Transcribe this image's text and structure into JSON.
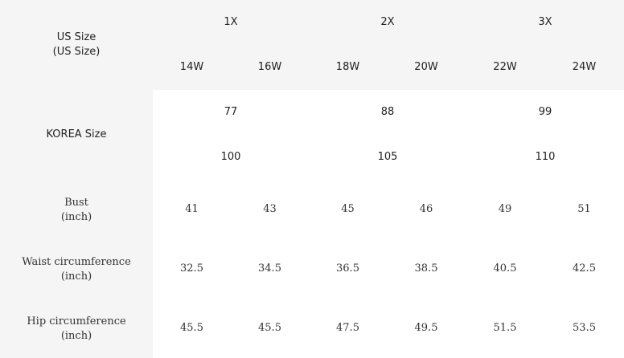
{
  "us_size": {
    "label_line1": "US Size",
    "label_line2": "(US Size)",
    "groups": [
      "1X",
      "2X",
      "3X"
    ],
    "sizes": [
      "14W",
      "16W",
      "18W",
      "20W",
      "22W",
      "24W"
    ]
  },
  "korea_size": {
    "label": "KOREA Size",
    "row1": [
      "77",
      "88",
      "99"
    ],
    "row2": [
      "100",
      "105",
      "110"
    ]
  },
  "bust": {
    "label_line1": "Bust",
    "label_line2": "(inch)",
    "values": [
      "41",
      "43",
      "45",
      "46",
      "49",
      "51"
    ]
  },
  "waist": {
    "label_line1": "Waist circumference",
    "label_line2": "(inch)",
    "values": [
      "32.5",
      "34.5",
      "36.5",
      "38.5",
      "40.5",
      "42.5"
    ]
  },
  "hip": {
    "label_line1": "Hip circumference",
    "label_line2": "(inch)",
    "values": [
      "45.5",
      "45.5",
      "47.5",
      "49.5",
      "51.5",
      "53.5"
    ]
  }
}
